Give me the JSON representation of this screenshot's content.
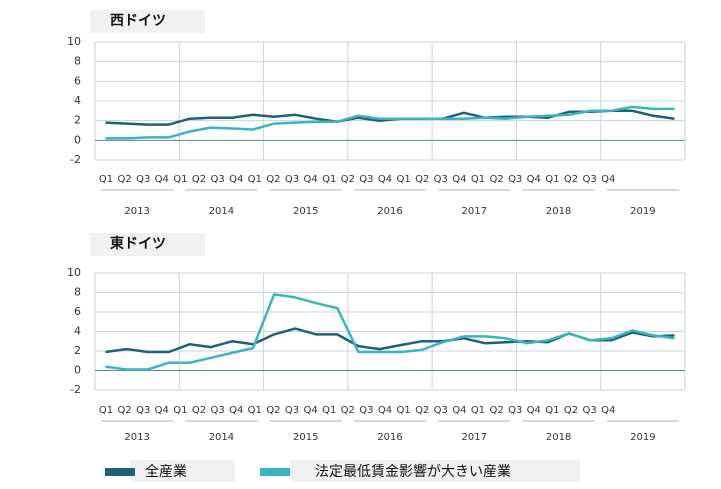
{
  "chart_data": [
    {
      "type": "line",
      "title": "西ドイツ",
      "categories": [
        "Q1",
        "Q2",
        "Q3",
        "Q4",
        "Q1",
        "Q2",
        "Q3",
        "Q4",
        "Q1",
        "Q2",
        "Q3",
        "Q4",
        "Q1",
        "Q2",
        "Q3",
        "Q4",
        "Q1",
        "Q2",
        "Q3",
        "Q4",
        "Q1",
        "Q2",
        "Q3",
        "Q4",
        "Q1",
        "Q2",
        "Q3",
        "Q4"
      ],
      "groups": [
        "2013",
        "2014",
        "2015",
        "2016",
        "2017",
        "2018",
        "2019"
      ],
      "ylim": [
        -2,
        10
      ],
      "yticks": [
        -2,
        0,
        2,
        4,
        6,
        8,
        10
      ],
      "grid": true,
      "series": [
        {
          "name": "全産業",
          "color": "#1d6178",
          "values": [
            1.8,
            1.7,
            1.6,
            1.6,
            2.2,
            2.3,
            2.3,
            2.6,
            2.4,
            2.6,
            2.2,
            1.9,
            2.3,
            2.0,
            2.2,
            2.2,
            2.2,
            2.8,
            2.3,
            2.4,
            2.4,
            2.3,
            2.9,
            2.9,
            3.0,
            3.0,
            2.5,
            2.2
          ]
        },
        {
          "name": "法定最低賃金影響が大きい産業",
          "color": "#3ab4c2",
          "values": [
            0.2,
            0.2,
            0.3,
            0.3,
            0.9,
            1.3,
            1.2,
            1.1,
            1.7,
            1.8,
            1.9,
            1.9,
            2.5,
            2.2,
            2.2,
            2.2,
            2.2,
            2.2,
            2.3,
            2.2,
            2.4,
            2.5,
            2.6,
            3.0,
            3.0,
            3.4,
            3.2,
            3.2
          ]
        }
      ]
    },
    {
      "type": "line",
      "title": "東ドイツ",
      "categories": [
        "Q1",
        "Q2",
        "Q3",
        "Q4",
        "Q1",
        "Q2",
        "Q3",
        "Q4",
        "Q1",
        "Q2",
        "Q3",
        "Q4",
        "Q1",
        "Q2",
        "Q3",
        "Q4",
        "Q1",
        "Q2",
        "Q3",
        "Q4",
        "Q1",
        "Q2",
        "Q3",
        "Q4",
        "Q1",
        "Q2",
        "Q3",
        "Q4"
      ],
      "groups": [
        "2013",
        "2014",
        "2015",
        "2016",
        "2017",
        "2018",
        "2019"
      ],
      "ylim": [
        -2,
        10
      ],
      "yticks": [
        -2,
        0,
        2,
        4,
        6,
        8,
        10
      ],
      "grid": true,
      "series": [
        {
          "color": "#1d6178",
          "values": [
            1.9,
            2.2,
            1.9,
            1.9,
            2.7,
            2.4,
            3.0,
            2.7,
            3.7,
            4.3,
            3.7,
            3.7,
            2.5,
            2.2,
            2.6,
            3.0,
            3.0,
            3.3,
            2.8,
            2.9,
            3.0,
            2.9,
            3.8,
            3.1,
            3.1,
            3.9,
            3.5,
            3.6
          ]
        },
        {
          "color": "#3ab4c2",
          "values": [
            0.4,
            0.1,
            0.1,
            0.8,
            0.8,
            1.3,
            1.8,
            2.3,
            7.8,
            7.5,
            6.9,
            6.4,
            1.9,
            1.9,
            1.9,
            2.1,
            2.9,
            3.5,
            3.5,
            3.3,
            2.8,
            3.1,
            3.8,
            3.1,
            3.3,
            4.1,
            3.6,
            3.3
          ]
        }
      ]
    }
  ]
}
